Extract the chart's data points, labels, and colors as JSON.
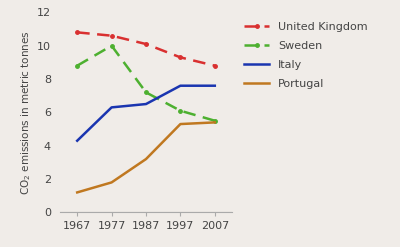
{
  "years": [
    1967,
    1977,
    1987,
    1997,
    2007
  ],
  "united_kingdom": [
    10.8,
    10.6,
    10.1,
    9.3,
    8.8
  ],
  "sweden": [
    8.8,
    10.0,
    7.2,
    6.1,
    5.5
  ],
  "italy": [
    4.3,
    6.3,
    6.5,
    7.6,
    7.6
  ],
  "portugal": [
    1.2,
    1.8,
    3.2,
    5.3,
    5.4
  ],
  "uk_color": "#d93030",
  "sweden_color": "#4db030",
  "italy_color": "#1a35b0",
  "portugal_color": "#c07820",
  "background_color": "#f0ece8",
  "ylabel": "CO$_2$ emissions in metric tonnes",
  "ylim": [
    0,
    12
  ],
  "yticks": [
    0,
    2,
    4,
    6,
    8,
    10,
    12
  ],
  "xlim": [
    1962,
    2012
  ],
  "xticks": [
    1967,
    1977,
    1987,
    1997,
    2007
  ],
  "legend_labels": [
    "United Kingdom",
    "Sweden",
    "Italy",
    "Portugal"
  ],
  "label_fontsize": 7.5,
  "tick_fontsize": 8,
  "legend_fontsize": 8
}
